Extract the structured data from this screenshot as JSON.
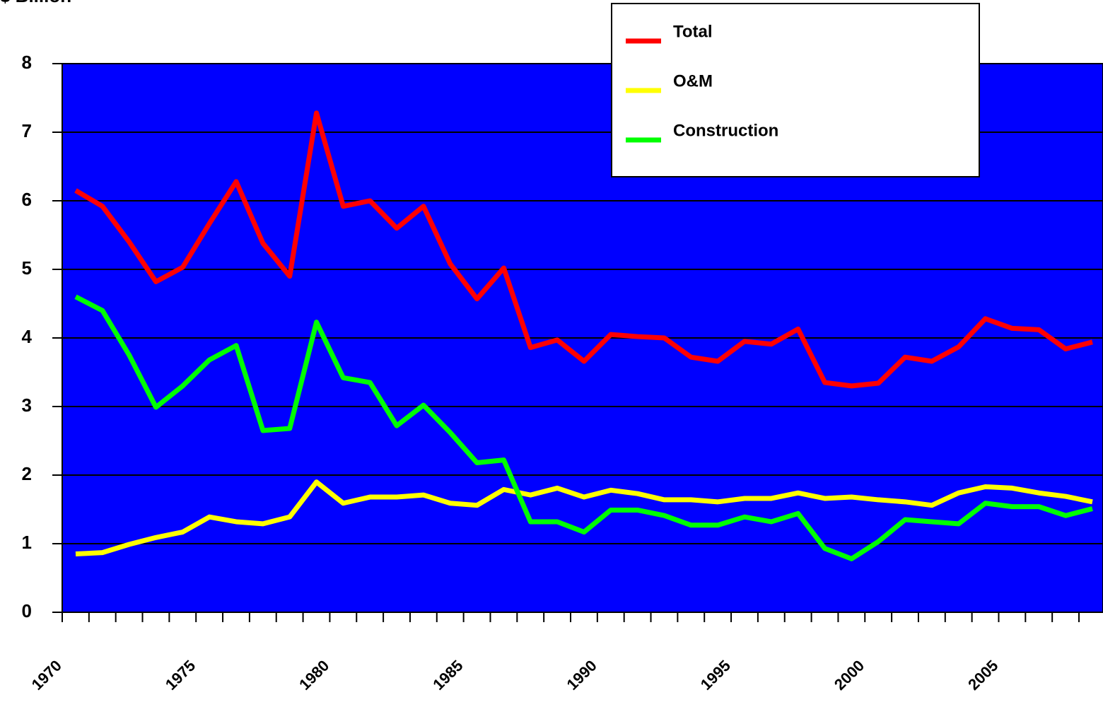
{
  "chart_data": {
    "type": "line",
    "y_label": "$ Billion",
    "categories": [
      "1970",
      null,
      null,
      null,
      null,
      "1975",
      null,
      null,
      null,
      null,
      "1980",
      null,
      null,
      null,
      null,
      "1985",
      null,
      null,
      null,
      null,
      "1990",
      null,
      null,
      null,
      null,
      "1995",
      null,
      null,
      null,
      null,
      "2000",
      null,
      null,
      null,
      null,
      "2005",
      null,
      null,
      null
    ],
    "series": [
      {
        "name": "Total",
        "color": "#ff0000",
        "values": [
          6.15,
          5.92,
          5.4,
          4.82,
          5.03,
          5.67,
          6.28,
          5.38,
          4.9,
          7.28,
          5.92,
          6.0,
          5.6,
          5.92,
          5.08,
          4.57,
          5.02,
          3.86,
          3.97,
          3.66,
          4.05,
          4.02,
          4.0,
          3.72,
          3.66,
          3.95,
          3.91,
          4.13,
          3.35,
          3.3,
          3.34,
          3.72,
          3.66,
          3.87,
          4.28,
          4.14,
          4.12,
          3.84,
          3.94
        ]
      },
      {
        "name": "O&M",
        "color": "#ffff00",
        "values": [
          0.85,
          0.87,
          0.99,
          1.09,
          1.17,
          1.39,
          1.32,
          1.29,
          1.39,
          1.9,
          1.59,
          1.68,
          1.68,
          1.71,
          1.59,
          1.56,
          1.79,
          1.71,
          1.81,
          1.68,
          1.78,
          1.73,
          1.64,
          1.64,
          1.61,
          1.66,
          1.66,
          1.74,
          1.66,
          1.68,
          1.64,
          1.61,
          1.56,
          1.74,
          1.83,
          1.81,
          1.74,
          1.69,
          1.61
        ]
      },
      {
        "name": "Construction",
        "color": "#00ff00",
        "values": [
          4.6,
          4.4,
          3.75,
          2.99,
          3.3,
          3.68,
          3.89,
          2.65,
          2.68,
          4.23,
          3.42,
          3.35,
          2.72,
          3.02,
          2.62,
          2.18,
          2.22,
          1.32,
          1.32,
          1.17,
          1.49,
          1.49,
          1.41,
          1.27,
          1.27,
          1.39,
          1.32,
          1.44,
          0.93,
          0.78,
          1.03,
          1.35,
          1.32,
          1.29,
          1.59,
          1.54,
          1.54,
          1.41,
          1.51
        ]
      }
    ],
    "ylim": [
      0,
      8
    ],
    "yticks": [
      0,
      1,
      2,
      3,
      4,
      5,
      6,
      7,
      8
    ],
    "grid": true,
    "plot_background": "#0000ff",
    "legend": "upper right"
  }
}
